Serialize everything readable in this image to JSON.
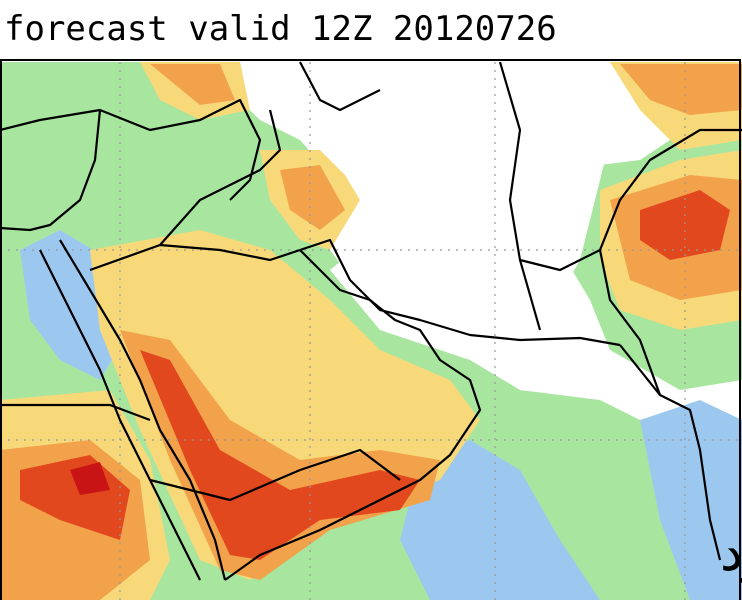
{
  "header": {
    "title": "forecast valid 12Z 20120726"
  },
  "watermark": "مطارد"
}
